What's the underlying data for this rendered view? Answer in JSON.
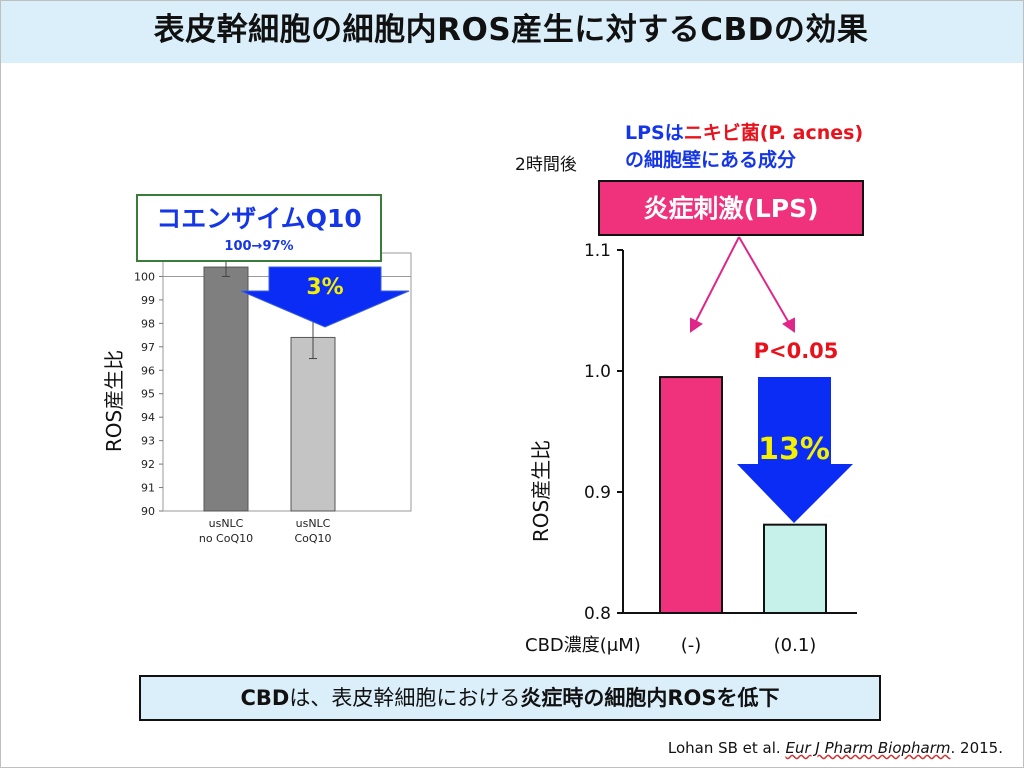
{
  "title": "表皮幹細胞の細胞内ROS産生に対するCBDの効果",
  "colors": {
    "title_bg": "#dbeffb",
    "pink": "#f0327d",
    "teal": "#c6f0ea",
    "blue_arrow": "#0a2cf5",
    "yellow": "#f4f000",
    "red": "#e8121c",
    "dark_blue_text": "#1436e6",
    "green_border": "#3a7d3a",
    "dark_grey_bar": "#7f7f7f",
    "light_grey_bar": "#c4c4c4"
  },
  "left_chart": {
    "callout_title": "コエンザイムQ10",
    "callout_sub": "100→97%",
    "arrow_label": "3%",
    "ylabel": "ROS産生比"
  },
  "right_chart": {
    "time_label": "2時間後",
    "lps_note_line1_a": "LPSは",
    "lps_note_line1_b": "ニキビ菌(P. acnes)",
    "lps_note_line2": "の細胞壁にある成分",
    "stim_label": "炎症刺激(LPS)",
    "pvalue": "P<0.05",
    "arrow_label": "13%",
    "ylabel": "ROS産生比",
    "xtitle": "CBD濃度(μM)"
  },
  "chart_data": [
    {
      "type": "bar",
      "categories": [
        "usNLC\nno CoQ10",
        "usNLC\nCoQ10"
      ],
      "values": [
        100.4,
        97.4
      ],
      "errors": [
        0.4,
        0.9
      ],
      "ylabel": "ROS産生比",
      "ylim": [
        90,
        101
      ],
      "yticks": [
        90,
        91,
        92,
        93,
        94,
        95,
        96,
        97,
        98,
        99,
        100
      ],
      "reference_line": 100,
      "grid": false
    },
    {
      "type": "bar",
      "categories": [
        "(-)",
        "(0.1)"
      ],
      "values": [
        0.995,
        0.873
      ],
      "ylabel": "ROS産生比",
      "xlabel": "CBD濃度(μM)",
      "ylim": [
        0.8,
        1.1
      ],
      "yticks": [
        "0.8",
        "0.9",
        "1.0",
        "1.1"
      ],
      "grid": false
    }
  ],
  "summary": {
    "part1": "CBD",
    "part2": "は、表皮幹細胞における",
    "part3": "炎症時の細胞内ROSを低下"
  },
  "citation": {
    "authors": "Lohan SB et al. ",
    "journal": "Eur J Pharm Biopharm",
    "year": ". 2015."
  }
}
